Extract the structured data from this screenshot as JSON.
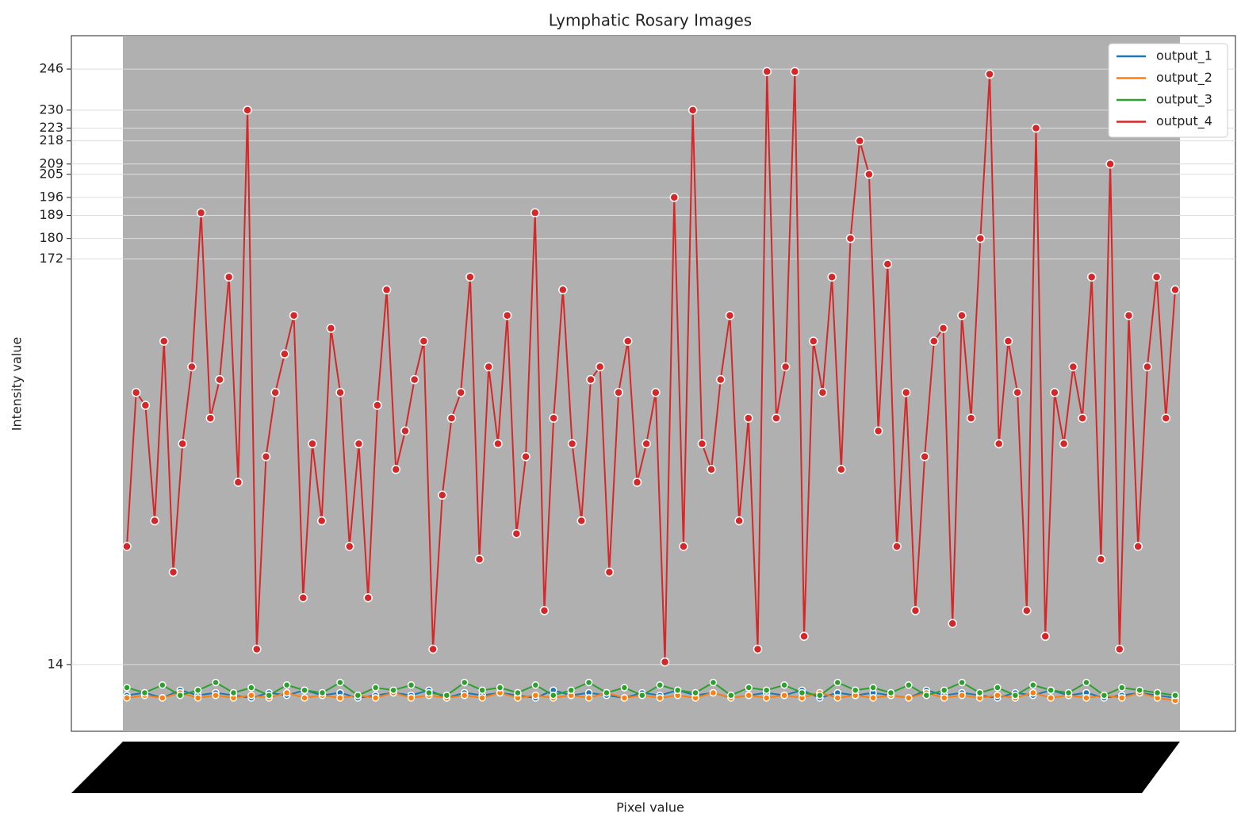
{
  "chart_data": {
    "type": "line",
    "title": "Lymphatic Rosary Images",
    "xlabel": "Pixel value",
    "ylabel": "Intensity value",
    "ylim": [
      -12,
      259
    ],
    "yticks": [
      14,
      172,
      180,
      189,
      196,
      205,
      209,
      218,
      223,
      230,
      246
    ],
    "grid": true,
    "legend": "upper right",
    "series": [
      {
        "name": "output_1",
        "color": "#1f77b4",
        "values": [
          2,
          3,
          1,
          4,
          2,
          3,
          2,
          1,
          3,
          2,
          4,
          2,
          3,
          1,
          2,
          3,
          2,
          4,
          1,
          3,
          2,
          3,
          2,
          1,
          4,
          2,
          3,
          2,
          1,
          3,
          2,
          4,
          2,
          3,
          1,
          2,
          3,
          2,
          4,
          1,
          3,
          2,
          3,
          2,
          1,
          4,
          2,
          3,
          2,
          1,
          3,
          2,
          4,
          2,
          3,
          1,
          2,
          3,
          2,
          1
        ]
      },
      {
        "name": "output_2",
        "color": "#ff7f0e",
        "values": [
          1,
          2,
          1,
          3,
          1,
          2,
          1,
          2,
          1,
          3,
          1,
          2,
          1,
          2,
          1,
          3,
          1,
          2,
          1,
          2,
          1,
          3,
          1,
          2,
          1,
          2,
          1,
          3,
          1,
          2,
          1,
          2,
          1,
          3,
          1,
          2,
          1,
          2,
          1,
          3,
          1,
          2,
          1,
          2,
          1,
          3,
          1,
          2,
          1,
          2,
          1,
          3,
          1,
          2,
          1,
          2,
          1,
          3,
          1,
          0
        ]
      },
      {
        "name": "output_3",
        "color": "#2ca02c",
        "values": [
          5,
          3,
          6,
          2,
          4,
          7,
          3,
          5,
          2,
          6,
          4,
          3,
          7,
          2,
          5,
          4,
          6,
          3,
          2,
          7,
          4,
          5,
          3,
          6,
          2,
          4,
          7,
          3,
          5,
          2,
          6,
          4,
          3,
          7,
          2,
          5,
          4,
          6,
          3,
          2,
          7,
          4,
          5,
          3,
          6,
          2,
          4,
          7,
          3,
          5,
          2,
          6,
          4,
          3,
          7,
          2,
          5,
          4,
          3,
          2
        ]
      },
      {
        "name": "output_4",
        "color": "#d62728",
        "values": [
          60,
          120,
          115,
          70,
          140,
          50,
          100,
          130,
          190,
          110,
          125,
          165,
          85,
          230,
          20,
          95,
          120,
          135,
          150,
          40,
          100,
          70,
          145,
          120,
          60,
          100,
          40,
          115,
          160,
          90,
          105,
          125,
          140,
          20,
          80,
          110,
          120,
          165,
          55,
          130,
          100,
          150,
          65,
          95,
          190,
          35,
          110,
          160,
          100,
          70,
          125,
          130,
          50,
          120,
          140,
          85,
          100,
          120,
          15,
          196,
          60,
          230,
          100,
          90,
          125,
          150,
          70,
          110,
          20,
          245,
          110,
          130,
          245,
          25,
          140,
          120,
          165,
          90,
          180,
          218,
          205,
          105,
          170,
          60,
          120,
          35,
          95,
          140,
          145,
          30,
          150,
          110,
          180,
          244,
          100,
          140,
          120,
          35,
          223,
          25,
          120,
          100,
          130,
          110,
          165,
          55,
          209,
          20,
          150,
          60,
          130,
          165,
          110,
          160
        ]
      }
    ]
  }
}
